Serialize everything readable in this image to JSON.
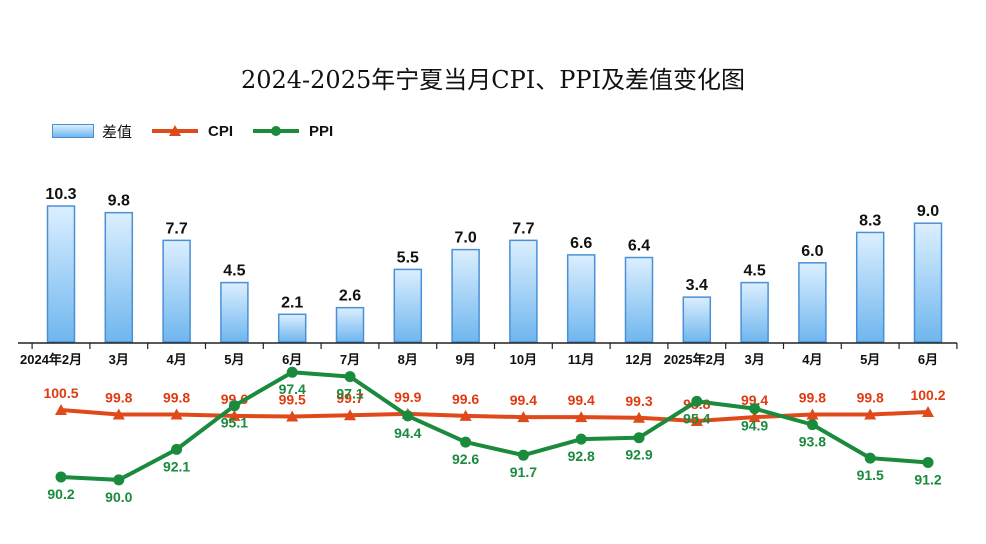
{
  "chart_data": {
    "type": "bar",
    "title": "2024-2025年宁夏当月CPI、PPI及差值变化图",
    "categories": [
      "2024年2月",
      "3月",
      "4月",
      "5月",
      "6月",
      "7月",
      "8月",
      "9月",
      "10月",
      "11月",
      "12月",
      "2025年2月",
      "3月",
      "4月",
      "5月",
      "6月"
    ],
    "series": [
      {
        "name": "差值",
        "type": "bar",
        "values": [
          10.3,
          9.8,
          7.7,
          4.5,
          2.1,
          2.6,
          5.5,
          7.0,
          7.7,
          6.6,
          6.4,
          3.4,
          4.5,
          6.0,
          8.3,
          9.0
        ],
        "labels": [
          "10.3",
          "9.8",
          "7.7",
          "4.5",
          "2.1",
          "2.6",
          "5.5",
          "7.0",
          "7.7",
          "6.6",
          "6.4",
          "3.4",
          "4.5",
          "6.0",
          "8.3",
          "9.0"
        ]
      },
      {
        "name": "CPI",
        "type": "line",
        "values": [
          100.5,
          99.8,
          99.8,
          99.6,
          99.5,
          99.7,
          99.9,
          99.6,
          99.4,
          99.4,
          99.3,
          98.8,
          99.4,
          99.8,
          99.8,
          100.2
        ],
        "labels": [
          "100.5",
          "99.8",
          "99.8",
          "99.6",
          "99.5",
          "99.7",
          "99.9",
          "99.6",
          "99.4",
          "99.4",
          "99.3",
          "98.8",
          "99.4",
          "99.8",
          "99.8",
          "100.2"
        ]
      },
      {
        "name": "PPI",
        "type": "line",
        "values": [
          90.2,
          90.0,
          92.1,
          95.1,
          97.4,
          97.1,
          94.4,
          92.6,
          91.7,
          92.8,
          92.9,
          95.4,
          94.9,
          93.8,
          91.5,
          91.2
        ],
        "labels": [
          "90.2",
          "90.0",
          "92.1",
          "95.1",
          "97.4",
          "97.1",
          "94.4",
          "92.6",
          "91.7",
          "92.8",
          "92.9",
          "95.4",
          "94.9",
          "93.8",
          "91.5",
          "91.2"
        ]
      }
    ],
    "legend_position": "top-left",
    "grid": false
  },
  "colors": {
    "bar_top": "#dcefff",
    "bar_bottom": "#6fb6ee",
    "bar_border": "#4a90d6",
    "cpi": "#e04a1a",
    "ppi": "#1a8a3c"
  }
}
